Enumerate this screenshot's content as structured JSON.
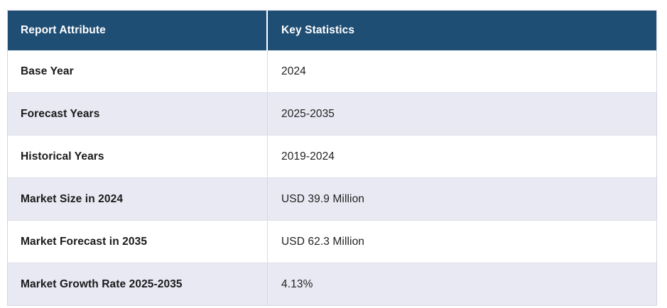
{
  "table": {
    "header": {
      "attribute_label": "Report Attribute",
      "statistics_label": "Key Statistics"
    },
    "rows": [
      {
        "attribute": "Base Year",
        "value": "2024"
      },
      {
        "attribute": "Forecast Years",
        "value": "2025-2035"
      },
      {
        "attribute": "Historical Years",
        "value": "2019-2024"
      },
      {
        "attribute": "Market Size in 2024",
        "value": "USD 39.9 Million"
      },
      {
        "attribute": "Market Forecast in 2035",
        "value": "USD 62.3 Million"
      },
      {
        "attribute": "Market Growth Rate 2025-2035",
        "value": "4.13%"
      }
    ],
    "colors": {
      "header_bg": "#1f4e74",
      "header_text": "#ffffff",
      "row_bg": "#ffffff",
      "row_alt_bg": "#e8e9f3",
      "border": "#d3d6df"
    }
  }
}
